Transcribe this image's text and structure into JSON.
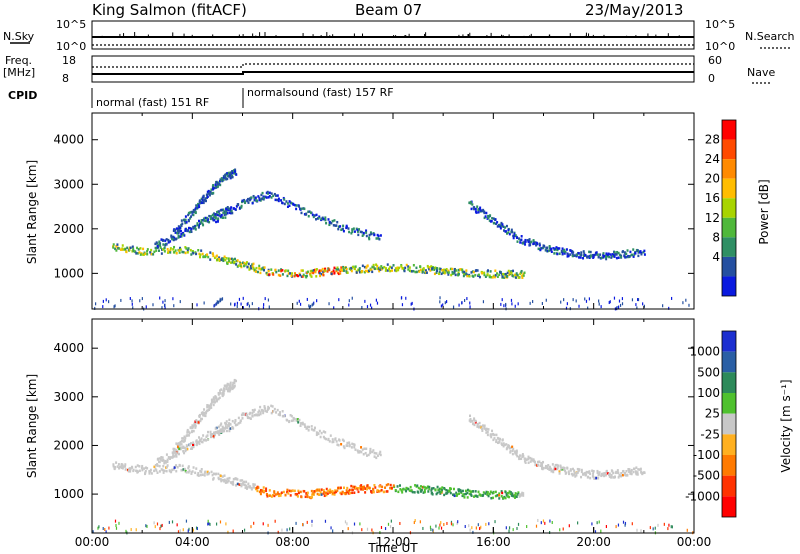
{
  "header": {
    "station": "King Salmon (fitACF)",
    "beam": "Beam 07",
    "date": "23/May/2013"
  },
  "summary": {
    "nsky_label": "N.Sky",
    "nsky_ticks": [
      "10^5",
      "10^0"
    ],
    "nsearch_label": "N.Search",
    "nsearch_ticks": [
      "10^5",
      "10^0"
    ],
    "freq_label": "Freq.",
    "freq_unit": "[MHz]",
    "freq_ticks": [
      "18",
      "8"
    ],
    "nave_label": "Nave",
    "nave_ticks": [
      "60",
      "0"
    ],
    "cpid_label": "CPID",
    "cpid_segments": [
      {
        "label": "normal (fast) 151 RF",
        "start_h": 0,
        "end_h": 6.1
      },
      {
        "label": "normalsound (fast) 157 RF",
        "start_h": 6.1,
        "end_h": 24
      }
    ]
  },
  "chart_data": [
    {
      "type": "heatmap",
      "name": "power",
      "ylabel": "Slant Range [km]",
      "xlabel": "",
      "xlim": [
        0,
        24
      ],
      "ylim": [
        200,
        4600
      ],
      "yticks": [
        "1000",
        "2000",
        "3000",
        "4000"
      ],
      "colorbar": {
        "label": "Power [dB]",
        "tick_labels": [
          "28",
          "24",
          "20",
          "16",
          "12",
          "8",
          "4"
        ],
        "colors": [
          "#ff0000",
          "#ff4a00",
          "#ff8a00",
          "#ffbd00",
          "#a8d400",
          "#4fb83b",
          "#2f8f64",
          "#244fa0",
          "#0a1adf"
        ]
      },
      "features": [
        {
          "name": "main echo band",
          "points": [
            [
              0.8,
              1620
            ],
            [
              2,
              1520
            ],
            [
              3.5,
              1560
            ],
            [
              5,
              1380
            ],
            [
              6,
              1230
            ],
            [
              7,
              1050
            ],
            [
              8.5,
              1020
            ],
            [
              9.5,
              1070
            ],
            [
              10.5,
              1120
            ],
            [
              11.5,
              1150
            ],
            [
              13,
              1130
            ],
            [
              14,
              1080
            ],
            [
              15,
              1030
            ],
            [
              16.3,
              1010
            ],
            [
              17.2,
              1010
            ]
          ]
        },
        {
          "name": "upper streamer",
          "points": [
            [
              3.2,
              1900
            ],
            [
              4,
              2400
            ],
            [
              4.6,
              2800
            ],
            [
              5.2,
              3150
            ],
            [
              5.7,
              3300
            ]
          ]
        },
        {
          "name": "second streamer",
          "points": [
            [
              4.8,
              2200
            ],
            [
              6,
              2600
            ],
            [
              7,
              2800
            ],
            [
              8.5,
              2400
            ],
            [
              10,
              2050
            ],
            [
              11.5,
              1800
            ]
          ]
        },
        {
          "name": "descending arc",
          "points": [
            [
              15,
              2600
            ],
            [
              16,
              2200
            ],
            [
              17,
              1800
            ],
            [
              18,
              1600
            ],
            [
              19,
              1480
            ],
            [
              20,
              1420
            ],
            [
              21,
              1440
            ],
            [
              22,
              1520
            ]
          ]
        },
        {
          "name": "descending arc lower",
          "points": [
            [
              5.5,
              2500
            ],
            [
              4.5,
              2200
            ],
            [
              3.5,
              1900
            ],
            [
              2.5,
              1650
            ]
          ]
        }
      ]
    },
    {
      "type": "heatmap",
      "name": "velocity",
      "ylabel": "Slant Range [km]",
      "xlabel": "Time UT",
      "xlim": [
        0,
        24
      ],
      "ylim": [
        200,
        4600
      ],
      "xticks": [
        "00:00",
        "04:00",
        "08:00",
        "12:00",
        "16:00",
        "20:00",
        "00:00"
      ],
      "yticks": [
        "1000",
        "2000",
        "3000",
        "4000"
      ],
      "colorbar": {
        "label": "Velocity [m s⁻¹]",
        "tick_labels": [
          "1000",
          "500",
          "100",
          "25",
          "-25",
          "-100",
          "-500",
          "-1000"
        ],
        "colors": [
          "#1c2fd0",
          "#2a5fa5",
          "#2d8a5a",
          "#4fc12e",
          "#c8c8c8",
          "#ffb020",
          "#ff7a00",
          "#ff3200",
          "#ff0000"
        ]
      },
      "features": [
        {
          "name": "main echo band",
          "points": [
            [
              0.8,
              1620
            ],
            [
              2,
              1520
            ],
            [
              3.5,
              1560
            ],
            [
              5,
              1380
            ],
            [
              6,
              1230
            ],
            [
              7,
              1050
            ],
            [
              8.5,
              1020
            ],
            [
              9.5,
              1070
            ],
            [
              10.5,
              1120
            ],
            [
              11.5,
              1150
            ],
            [
              13,
              1130
            ],
            [
              14,
              1080
            ],
            [
              15,
              1030
            ],
            [
              16.3,
              1010
            ],
            [
              17.2,
              1010
            ]
          ]
        },
        {
          "name": "upper streamer",
          "points": [
            [
              3.2,
              1900
            ],
            [
              4,
              2400
            ],
            [
              4.6,
              2800
            ],
            [
              5.2,
              3150
            ],
            [
              5.7,
              3300
            ]
          ]
        },
        {
          "name": "second streamer",
          "points": [
            [
              4.8,
              2200
            ],
            [
              6,
              2600
            ],
            [
              7,
              2800
            ],
            [
              8.5,
              2400
            ],
            [
              10,
              2050
            ],
            [
              11.5,
              1800
            ]
          ]
        },
        {
          "name": "descending arc",
          "points": [
            [
              15,
              2600
            ],
            [
              16,
              2200
            ],
            [
              17,
              1800
            ],
            [
              18,
              1600
            ],
            [
              19,
              1480
            ],
            [
              20,
              1420
            ],
            [
              21,
              1440
            ],
            [
              22,
              1520
            ]
          ]
        },
        {
          "name": "descending arc lower",
          "points": [
            [
              5.5,
              2500
            ],
            [
              4.5,
              2200
            ],
            [
              3.5,
              1900
            ],
            [
              2.5,
              1650
            ]
          ]
        }
      ]
    }
  ]
}
